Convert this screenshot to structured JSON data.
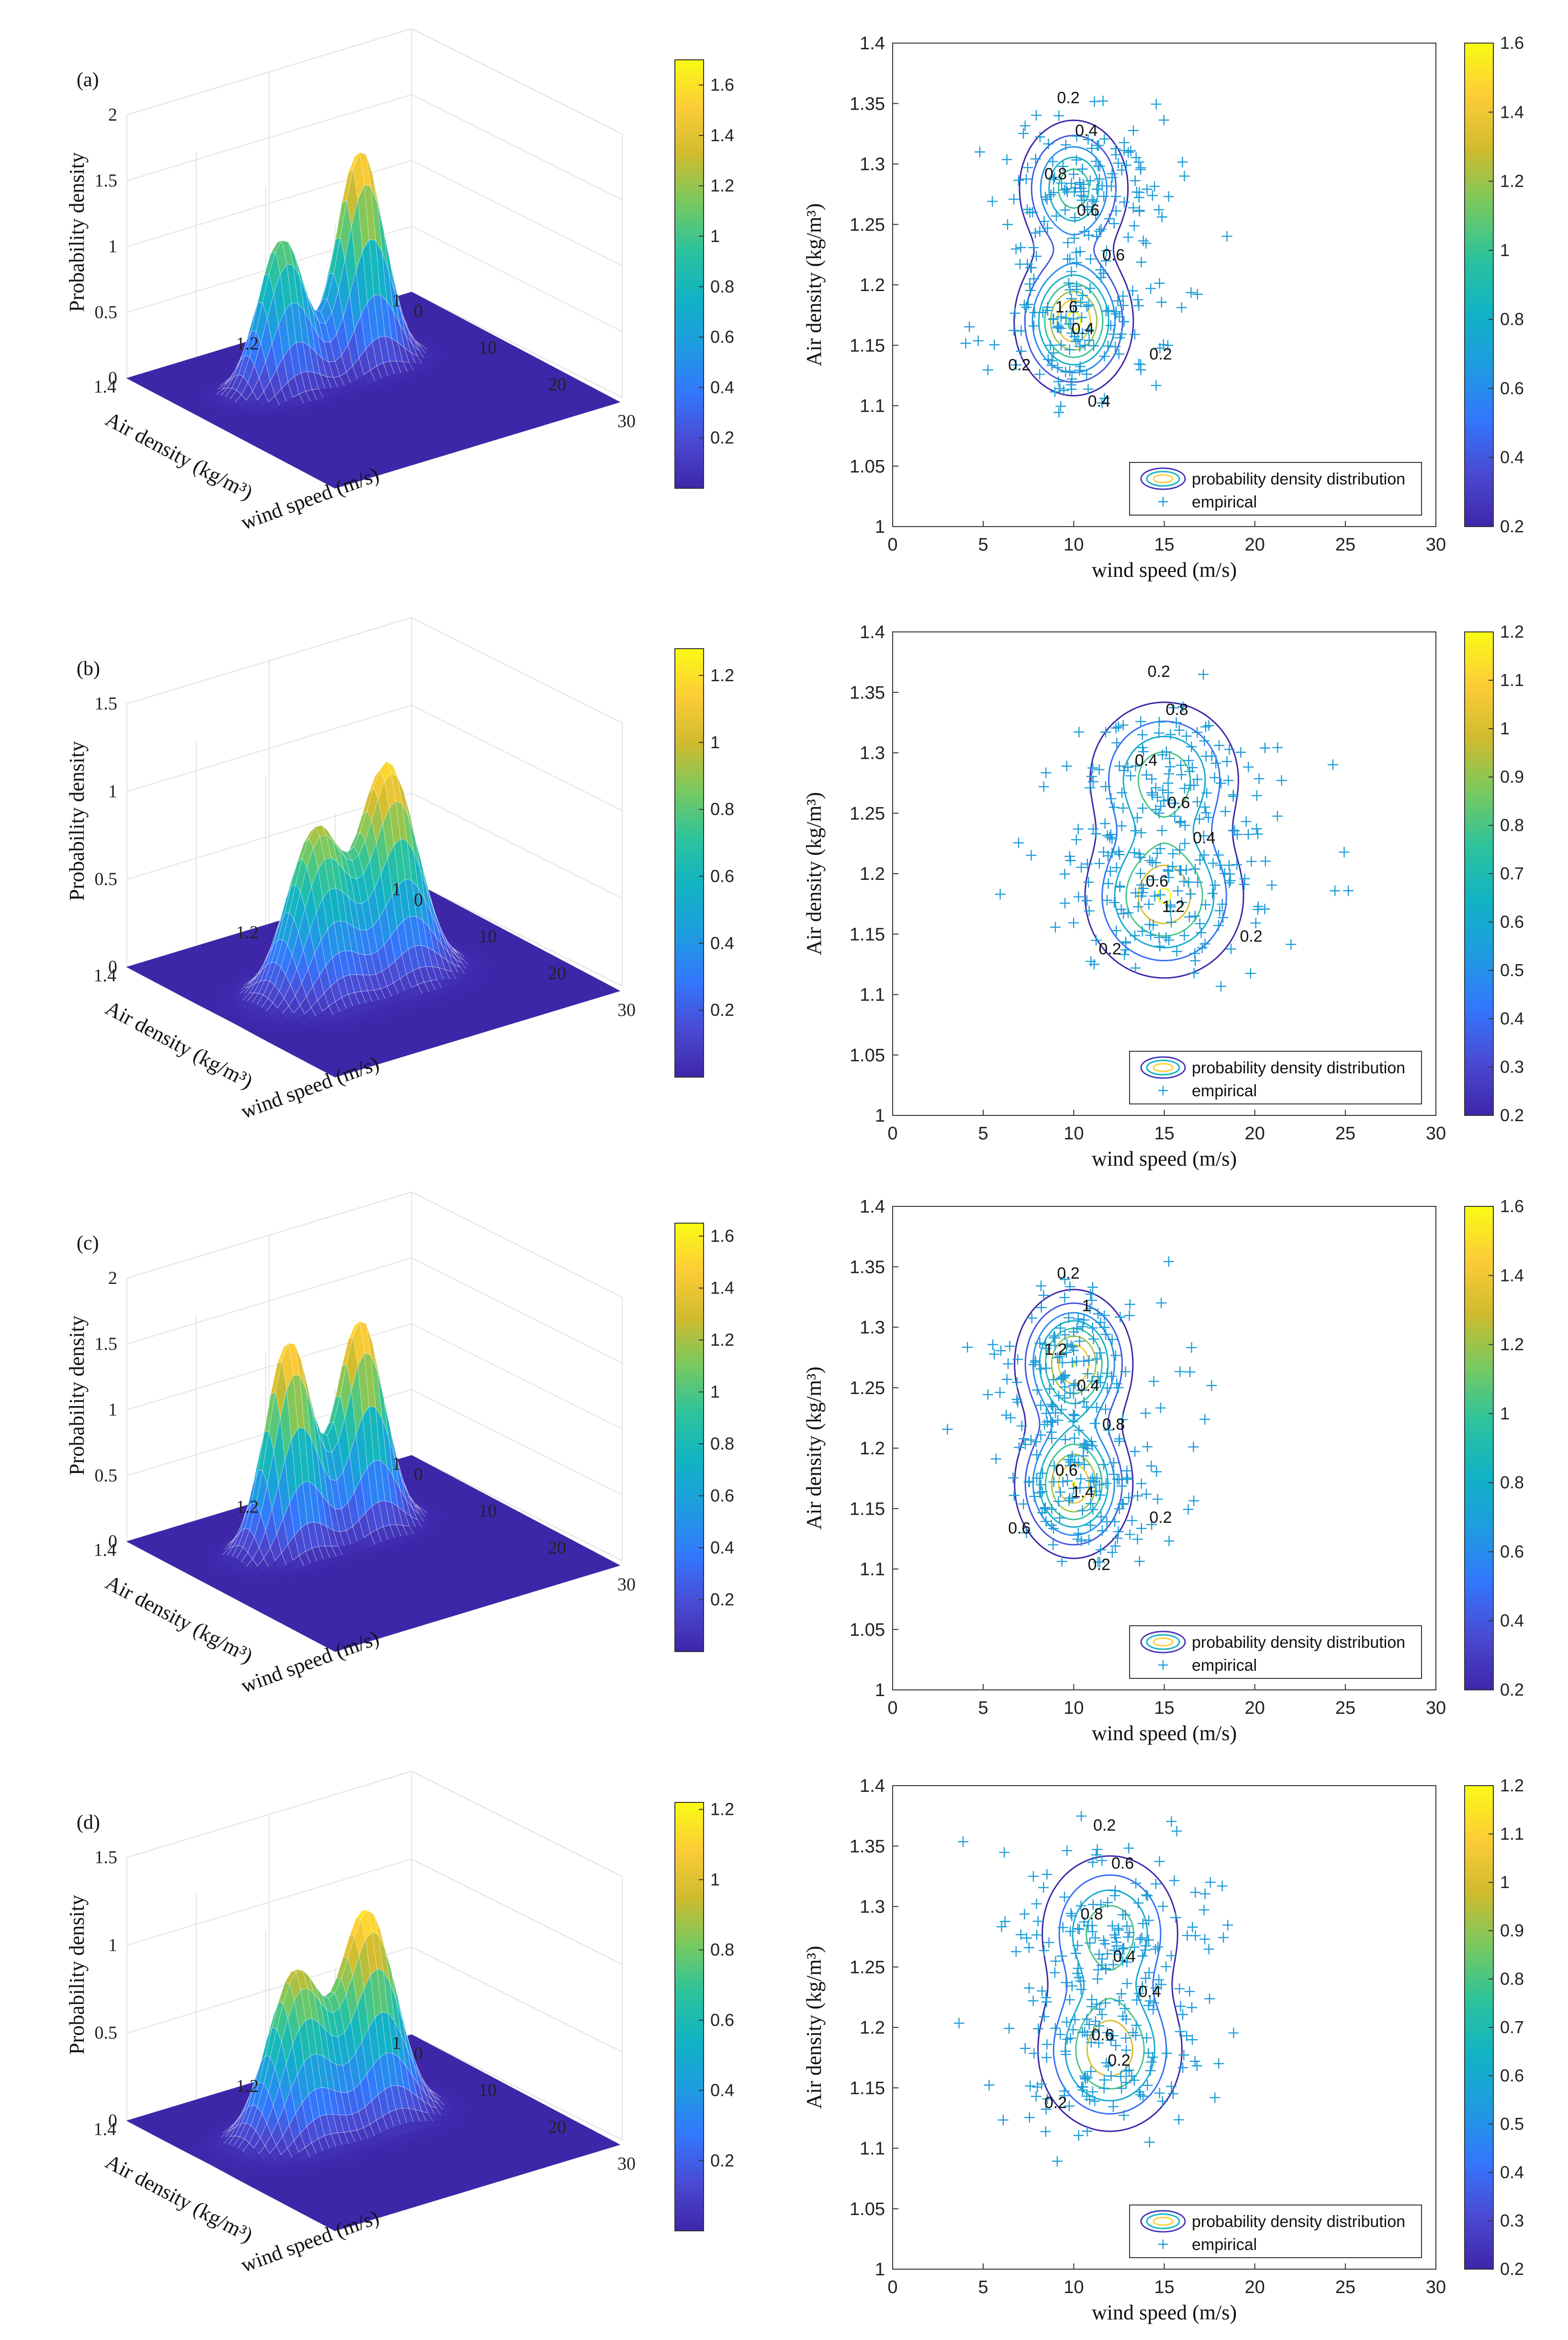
{
  "chart_data": [
    {
      "panel": "(a)",
      "surface": {
        "type": "surface3d",
        "xlabel": "wind speed (m/s)",
        "ylabel": "Air density (kg/m³)",
        "zlabel": "Probability density",
        "xticks": [
          "0",
          "10",
          "20",
          "30"
        ],
        "yticks": [
          "1",
          "1.2",
          "1.4"
        ],
        "zticks": [
          "0",
          "0.5",
          "1",
          "1.5",
          "2"
        ],
        "xlim": [
          0,
          30
        ],
        "ylim": [
          1,
          1.4
        ],
        "zlim": [
          0,
          2
        ],
        "peaks": [
          {
            "x": 10,
            "y": 1.28,
            "height": 1.15,
            "sx": 1.6,
            "sy": 0.03
          },
          {
            "x": 10,
            "y": 1.17,
            "height": 1.65,
            "sx": 1.6,
            "sy": 0.03
          }
        ],
        "colorbar": {
          "ticks": [
            "0.2",
            "0.4",
            "0.6",
            "0.8",
            "1",
            "1.2",
            "1.4",
            "1.6"
          ],
          "range": [
            0,
            1.7
          ]
        }
      },
      "contour": {
        "type": "contour",
        "xlabel": "wind speed (m/s)",
        "ylabel": "Air density (kg/m³)",
        "xticks": [
          "0",
          "5",
          "10",
          "15",
          "20",
          "25",
          "30"
        ],
        "yticks": [
          "1",
          "1.05",
          "1.1",
          "1.15",
          "1.2",
          "1.25",
          "1.3",
          "1.35",
          "1.4"
        ],
        "xlim": [
          0,
          30
        ],
        "ylim": [
          1,
          1.4
        ],
        "contour_labels": [
          "0.2",
          "0.4",
          "0.8",
          "0.6",
          "0.6",
          "1.6",
          "0.4",
          "0.2",
          "0.2",
          "0.4"
        ],
        "legend": [
          "probability density distribution",
          "empirical"
        ],
        "colorbar": {
          "ticks": [
            "0.2",
            "0.4",
            "0.6",
            "0.8",
            "1",
            "1.2",
            "1.4",
            "1.6"
          ],
          "range": [
            0.2,
            1.6
          ]
        }
      }
    },
    {
      "panel": "(b)",
      "surface": {
        "type": "surface3d",
        "xlabel": "wind speed (m/s)",
        "ylabel": "Air density (kg/m³)",
        "zlabel": "Probability density",
        "xticks": [
          "0",
          "10",
          "20",
          "30"
        ],
        "yticks": [
          "1",
          "1.2",
          "1.4"
        ],
        "zticks": [
          "0",
          "0.5",
          "1",
          "1.5"
        ],
        "xlim": [
          0,
          30
        ],
        "ylim": [
          1,
          1.4
        ],
        "zlim": [
          0,
          1.5
        ],
        "peaks": [
          {
            "x": 15,
            "y": 1.28,
            "height": 0.95,
            "sx": 2.3,
            "sy": 0.035
          },
          {
            "x": 15,
            "y": 1.18,
            "height": 1.2,
            "sx": 2.3,
            "sy": 0.035
          }
        ],
        "colorbar": {
          "ticks": [
            "0.2",
            "0.4",
            "0.6",
            "0.8",
            "1",
            "1.2"
          ],
          "range": [
            0,
            1.28
          ]
        }
      },
      "contour": {
        "type": "contour",
        "xlabel": "wind speed (m/s)",
        "ylabel": "Air density (kg/m³)",
        "xticks": [
          "0",
          "5",
          "10",
          "15",
          "20",
          "25",
          "30"
        ],
        "yticks": [
          "1",
          "1.05",
          "1.1",
          "1.15",
          "1.2",
          "1.25",
          "1.3",
          "1.35",
          "1.4"
        ],
        "xlim": [
          0,
          30
        ],
        "ylim": [
          1,
          1.4
        ],
        "contour_labels": [
          "0.2",
          "0.8",
          "0.4",
          "0.6",
          "0.4",
          "0.6",
          "1.2",
          "0.2",
          "0.2"
        ],
        "legend": [
          "probability density distribution",
          "empirical"
        ],
        "colorbar": {
          "ticks": [
            "0.2",
            "0.3",
            "0.4",
            "0.5",
            "0.6",
            "0.7",
            "0.8",
            "0.9",
            "1",
            "1.1",
            "1.2"
          ],
          "range": [
            0.2,
            1.2
          ]
        }
      }
    },
    {
      "panel": "(c)",
      "surface": {
        "type": "surface3d",
        "xlabel": "wind speed (m/s)",
        "ylabel": "Air density (kg/m³)",
        "zlabel": "Probability density",
        "xticks": [
          "0",
          "10",
          "20",
          "30"
        ],
        "yticks": [
          "1",
          "1.2",
          "1.4"
        ],
        "zticks": [
          "0",
          "0.5",
          "1",
          "1.5",
          "2"
        ],
        "xlim": [
          0,
          30
        ],
        "ylim": [
          1,
          1.4
        ],
        "zlim": [
          0,
          2
        ],
        "peaks": [
          {
            "x": 10,
            "y": 1.27,
            "height": 1.6,
            "sx": 1.6,
            "sy": 0.03
          },
          {
            "x": 10,
            "y": 1.17,
            "height": 1.6,
            "sx": 1.6,
            "sy": 0.03
          }
        ],
        "colorbar": {
          "ticks": [
            "0.2",
            "0.4",
            "0.6",
            "0.8",
            "1",
            "1.2",
            "1.4",
            "1.6"
          ],
          "range": [
            0,
            1.65
          ]
        }
      },
      "contour": {
        "type": "contour",
        "xlabel": "wind speed (m/s)",
        "ylabel": "Air density (kg/m³)",
        "xticks": [
          "0",
          "5",
          "10",
          "15",
          "20",
          "25",
          "30"
        ],
        "yticks": [
          "1",
          "1.05",
          "1.1",
          "1.15",
          "1.2",
          "1.25",
          "1.3",
          "1.35",
          "1.4"
        ],
        "xlim": [
          0,
          30
        ],
        "ylim": [
          1,
          1.4
        ],
        "contour_labels": [
          "0.2",
          "1",
          "1.2",
          "0.4",
          "0.8",
          "0.6",
          "1.4",
          "0.6",
          "0.2",
          "0.2"
        ],
        "legend": [
          "probability density distribution",
          "empirical"
        ],
        "colorbar": {
          "ticks": [
            "0.2",
            "0.4",
            "0.6",
            "0.8",
            "1",
            "1.2",
            "1.4",
            "1.6"
          ],
          "range": [
            0.2,
            1.6
          ]
        }
      }
    },
    {
      "panel": "(d)",
      "surface": {
        "type": "surface3d",
        "xlabel": "wind speed (m/s)",
        "ylabel": "Air density (kg/m³)",
        "zlabel": "Probability density",
        "xticks": [
          "0",
          "10",
          "20",
          "30"
        ],
        "yticks": [
          "1",
          "1.2",
          "1.4"
        ],
        "zticks": [
          "0",
          "0.5",
          "1",
          "1.5"
        ],
        "xlim": [
          0,
          30
        ],
        "ylim": [
          1,
          1.4
        ],
        "zlim": [
          0,
          1.5
        ],
        "peaks": [
          {
            "x": 12,
            "y": 1.28,
            "height": 0.95,
            "sx": 2.1,
            "sy": 0.035
          },
          {
            "x": 12,
            "y": 1.18,
            "height": 1.18,
            "sx": 2.1,
            "sy": 0.035
          }
        ],
        "colorbar": {
          "ticks": [
            "0.2",
            "0.4",
            "0.6",
            "0.8",
            "1",
            "1.2"
          ],
          "range": [
            0,
            1.22
          ]
        }
      },
      "contour": {
        "type": "contour",
        "xlabel": "wind speed (m/s)",
        "ylabel": "Air density (kg/m³)",
        "xticks": [
          "0",
          "5",
          "10",
          "15",
          "20",
          "25",
          "30"
        ],
        "yticks": [
          "1",
          "1.05",
          "1.1",
          "1.15",
          "1.2",
          "1.25",
          "1.3",
          "1.35",
          "1.4"
        ],
        "xlim": [
          0,
          30
        ],
        "ylim": [
          1,
          1.4
        ],
        "contour_labels": [
          "0.2",
          "0.6",
          "0.8",
          "0.4",
          "0.4",
          "0.6",
          "0.2",
          "0.2"
        ],
        "legend": [
          "probability density distribution",
          "empirical"
        ],
        "colorbar": {
          "ticks": [
            "0.2",
            "0.3",
            "0.4",
            "0.5",
            "0.6",
            "0.7",
            "0.8",
            "0.9",
            "1",
            "1.1",
            "1.2"
          ],
          "range": [
            0.2,
            1.2
          ]
        }
      }
    }
  ],
  "colormap": [
    "#3e26a8",
    "#4a4ad3",
    "#3377fd",
    "#1e9ce0",
    "#11b3c4",
    "#2cc39c",
    "#77c960",
    "#cfbb2e",
    "#fdcc37",
    "#f9fb15"
  ]
}
